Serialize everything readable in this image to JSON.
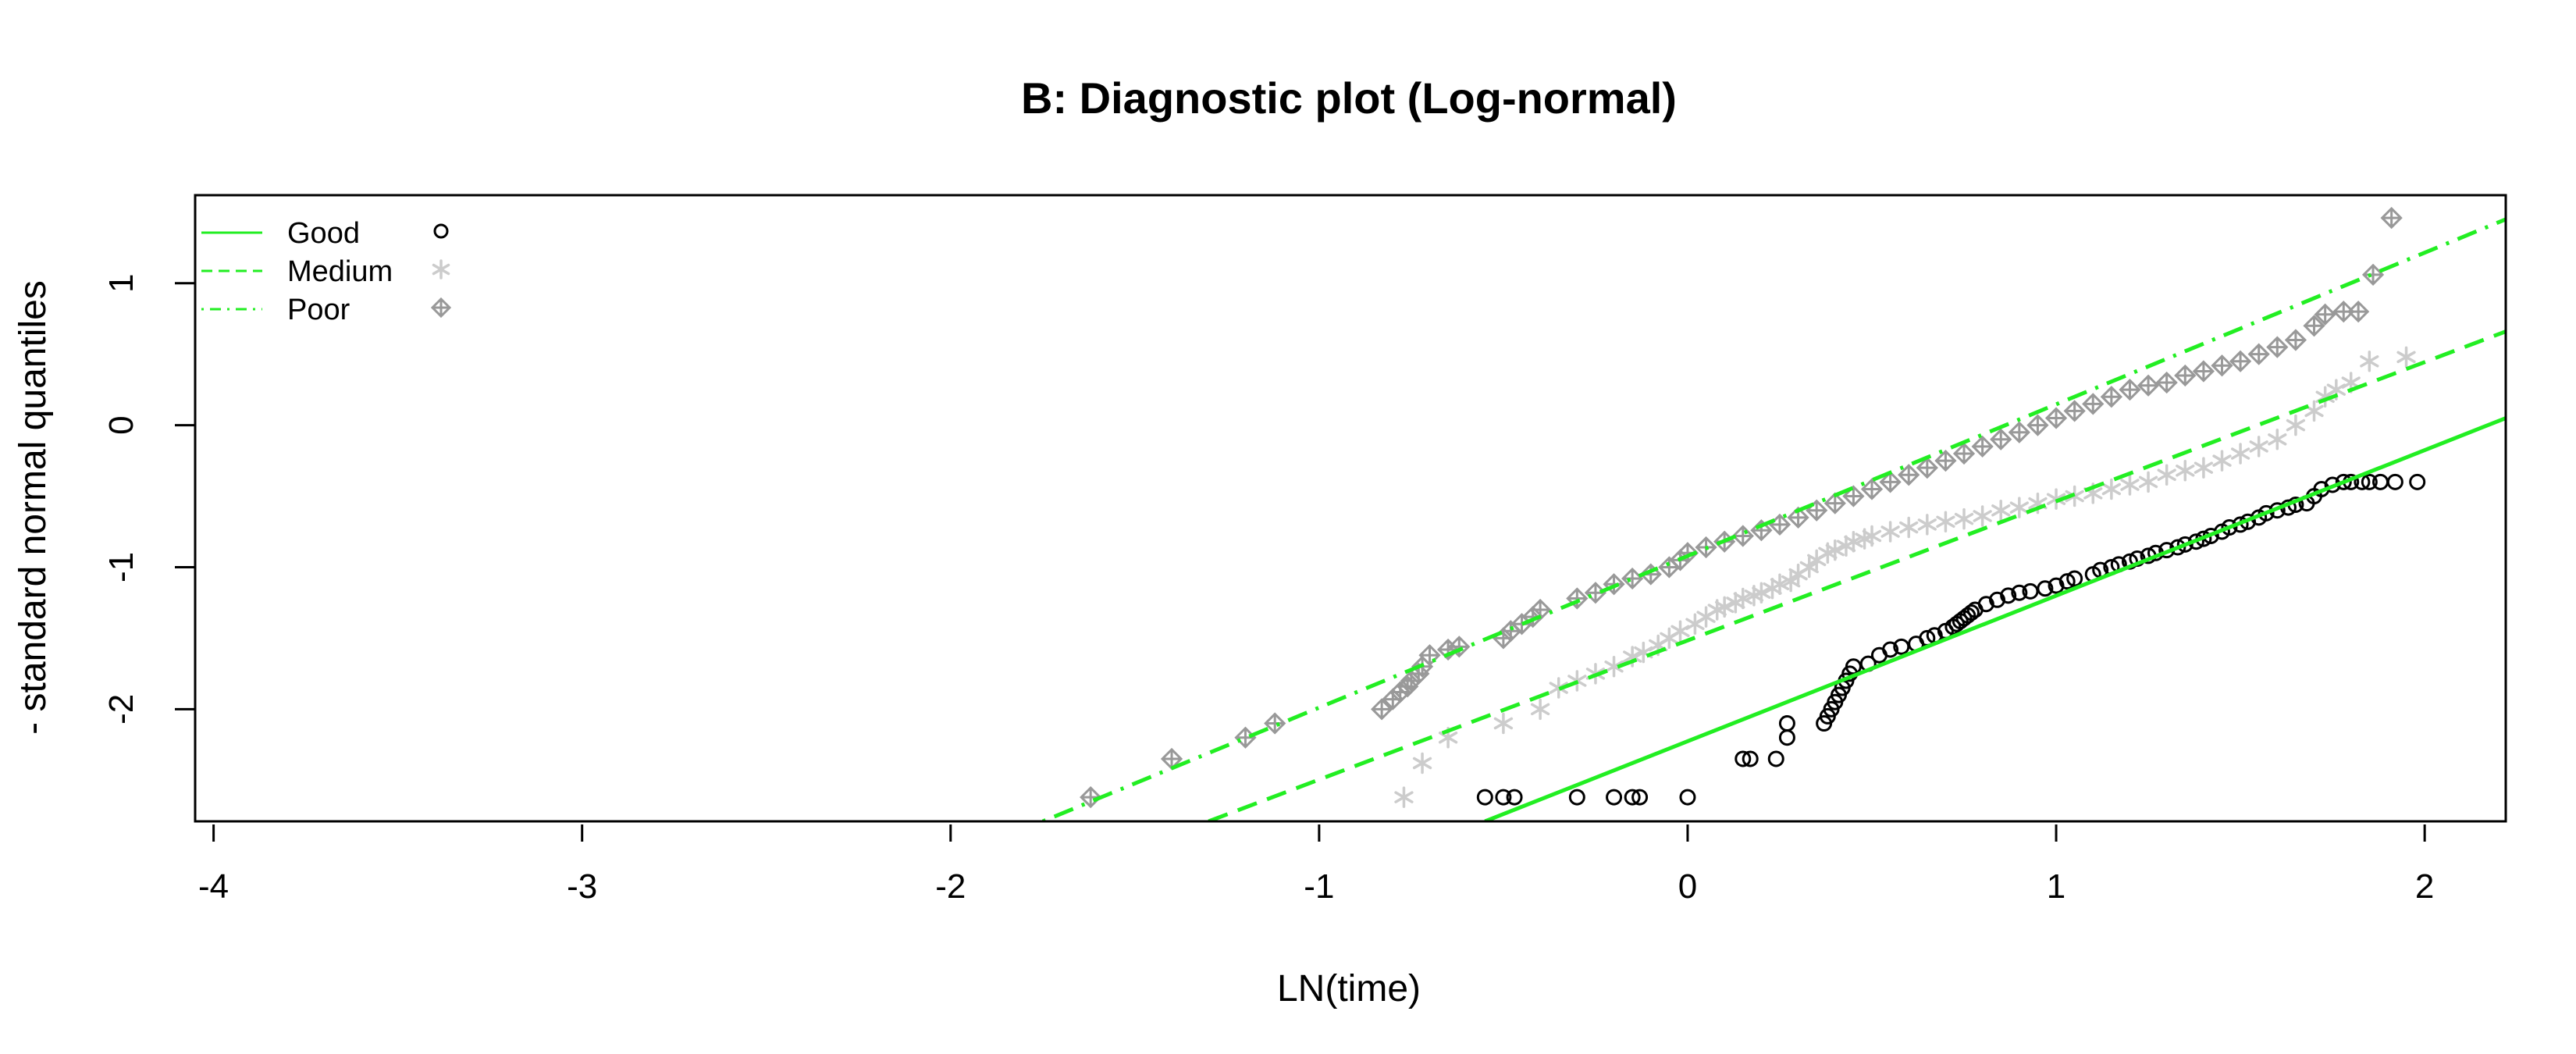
{
  "chart_data": {
    "type": "scatter",
    "title": "B: Diagnostic plot (Log-normal)",
    "xlabel": "LN(time)",
    "ylabel": "- standard normal quantiles",
    "xlim": [
      -4.05,
      2.22
    ],
    "ylim": [
      -2.79,
      1.62
    ],
    "x_ticks": [
      -4,
      -3,
      -2,
      -1,
      0,
      1,
      2
    ],
    "y_ticks": [
      -2,
      -1,
      0,
      1
    ],
    "legend_position": "top-left",
    "colors": {
      "line": "#22ee22",
      "good_points": "#000000",
      "medium_points": "#cccccc",
      "poor_points": "#999999"
    },
    "series": [
      {
        "name": "Good",
        "marker": "circle",
        "line_style": "solid",
        "line": {
          "x": [
            -0.55,
            2.22
          ],
          "y": [
            -2.79,
            0.05
          ]
        },
        "points": {
          "x": [
            -0.55,
            -0.5,
            -0.47,
            -0.3,
            -0.2,
            -0.15,
            -0.13,
            0.0,
            0.15,
            0.17,
            0.24,
            0.27,
            0.27,
            0.37,
            0.38,
            0.39,
            0.4,
            0.41,
            0.42,
            0.43,
            0.44,
            0.45,
            0.49,
            0.52,
            0.55,
            0.58,
            0.62,
            0.65,
            0.67,
            0.7,
            0.72,
            0.73,
            0.74,
            0.75,
            0.76,
            0.77,
            0.78,
            0.81,
            0.84,
            0.87,
            0.9,
            0.93,
            0.97,
            1.0,
            1.03,
            1.05,
            1.1,
            1.12,
            1.15,
            1.17,
            1.2,
            1.22,
            1.25,
            1.27,
            1.3,
            1.33,
            1.35,
            1.38,
            1.4,
            1.42,
            1.45,
            1.47,
            1.5,
            1.52,
            1.55,
            1.57,
            1.6,
            1.63,
            1.65,
            1.68,
            1.7,
            1.72,
            1.75,
            1.78,
            1.8,
            1.83,
            1.85,
            1.88,
            1.92,
            1.98
          ],
          "y": [
            -2.62,
            -2.62,
            -2.62,
            -2.62,
            -2.62,
            -2.62,
            -2.62,
            -2.62,
            -2.35,
            -2.35,
            -2.35,
            -2.2,
            -2.1,
            -2.1,
            -2.05,
            -2.0,
            -1.95,
            -1.9,
            -1.85,
            -1.8,
            -1.75,
            -1.7,
            -1.68,
            -1.62,
            -1.58,
            -1.56,
            -1.54,
            -1.5,
            -1.48,
            -1.45,
            -1.42,
            -1.4,
            -1.38,
            -1.36,
            -1.34,
            -1.32,
            -1.3,
            -1.26,
            -1.23,
            -1.2,
            -1.18,
            -1.17,
            -1.15,
            -1.13,
            -1.1,
            -1.08,
            -1.05,
            -1.02,
            -1.0,
            -0.98,
            -0.96,
            -0.94,
            -0.92,
            -0.9,
            -0.88,
            -0.86,
            -0.84,
            -0.82,
            -0.8,
            -0.78,
            -0.75,
            -0.72,
            -0.7,
            -0.68,
            -0.65,
            -0.62,
            -0.6,
            -0.58,
            -0.56,
            -0.55,
            -0.5,
            -0.45,
            -0.42,
            -0.4,
            -0.4,
            -0.4,
            -0.4,
            -0.4,
            -0.4,
            -0.4
          ]
        }
      },
      {
        "name": "Medium",
        "marker": "asterisk",
        "line_style": "dashed",
        "line": {
          "x": [
            -1.3,
            2.22
          ],
          "y": [
            -2.79,
            0.66
          ]
        },
        "points": {
          "x": [
            -0.77,
            -0.72,
            -0.65,
            -0.5,
            -0.4,
            -0.35,
            -0.3,
            -0.25,
            -0.2,
            -0.15,
            -0.12,
            -0.08,
            -0.05,
            -0.02,
            0.02,
            0.05,
            0.08,
            0.1,
            0.13,
            0.15,
            0.18,
            0.2,
            0.23,
            0.25,
            0.28,
            0.3,
            0.33,
            0.35,
            0.38,
            0.4,
            0.43,
            0.45,
            0.48,
            0.5,
            0.55,
            0.6,
            0.65,
            0.7,
            0.75,
            0.8,
            0.85,
            0.9,
            0.95,
            1.0,
            1.05,
            1.1,
            1.15,
            1.2,
            1.25,
            1.3,
            1.35,
            1.4,
            1.45,
            1.5,
            1.55,
            1.6,
            1.65,
            1.7,
            1.73,
            1.76,
            1.8,
            1.85,
            1.95
          ],
          "y": [
            -2.62,
            -2.38,
            -2.2,
            -2.1,
            -2.0,
            -1.85,
            -1.8,
            -1.75,
            -1.7,
            -1.63,
            -1.6,
            -1.55,
            -1.5,
            -1.45,
            -1.4,
            -1.35,
            -1.3,
            -1.28,
            -1.25,
            -1.22,
            -1.2,
            -1.18,
            -1.15,
            -1.12,
            -1.1,
            -1.05,
            -1.0,
            -0.95,
            -0.9,
            -0.88,
            -0.85,
            -0.82,
            -0.8,
            -0.78,
            -0.75,
            -0.72,
            -0.7,
            -0.68,
            -0.66,
            -0.64,
            -0.6,
            -0.58,
            -0.55,
            -0.52,
            -0.5,
            -0.48,
            -0.45,
            -0.42,
            -0.4,
            -0.35,
            -0.32,
            -0.3,
            -0.25,
            -0.2,
            -0.15,
            -0.1,
            0.0,
            0.1,
            0.2,
            0.25,
            0.3,
            0.45,
            0.48
          ]
        }
      },
      {
        "name": "Poor",
        "marker": "diamond-plus",
        "line_style": "dotdash",
        "line": {
          "x": [
            -1.75,
            2.22
          ],
          "y": [
            -2.79,
            1.45
          ]
        },
        "points": {
          "x": [
            -1.62,
            -1.4,
            -1.2,
            -1.12,
            -0.83,
            -0.8,
            -0.78,
            -0.76,
            -0.75,
            -0.73,
            -0.72,
            -0.7,
            -0.65,
            -0.62,
            -0.5,
            -0.48,
            -0.45,
            -0.42,
            -0.4,
            -0.3,
            -0.25,
            -0.2,
            -0.15,
            -0.1,
            -0.05,
            -0.02,
            0.0,
            0.05,
            0.1,
            0.15,
            0.2,
            0.25,
            0.3,
            0.35,
            0.4,
            0.45,
            0.5,
            0.55,
            0.6,
            0.65,
            0.7,
            0.75,
            0.8,
            0.85,
            0.9,
            0.95,
            1.0,
            1.05,
            1.1,
            1.15,
            1.2,
            1.25,
            1.3,
            1.35,
            1.4,
            1.45,
            1.5,
            1.55,
            1.6,
            1.65,
            1.7,
            1.73,
            1.78,
            1.82,
            1.86,
            1.91
          ],
          "y": [
            -2.62,
            -2.35,
            -2.2,
            -2.1,
            -2.0,
            -1.93,
            -1.88,
            -1.84,
            -1.8,
            -1.75,
            -1.7,
            -1.62,
            -1.58,
            -1.56,
            -1.5,
            -1.45,
            -1.4,
            -1.35,
            -1.3,
            -1.22,
            -1.18,
            -1.12,
            -1.08,
            -1.05,
            -1.0,
            -0.95,
            -0.9,
            -0.86,
            -0.82,
            -0.78,
            -0.74,
            -0.7,
            -0.65,
            -0.6,
            -0.55,
            -0.5,
            -0.45,
            -0.4,
            -0.35,
            -0.3,
            -0.25,
            -0.2,
            -0.15,
            -0.1,
            -0.05,
            0.0,
            0.05,
            0.1,
            0.15,
            0.2,
            0.25,
            0.28,
            0.3,
            0.35,
            0.38,
            0.42,
            0.45,
            0.5,
            0.55,
            0.6,
            0.7,
            0.78,
            0.8,
            0.8,
            1.06,
            1.46
          ]
        }
      }
    ]
  }
}
